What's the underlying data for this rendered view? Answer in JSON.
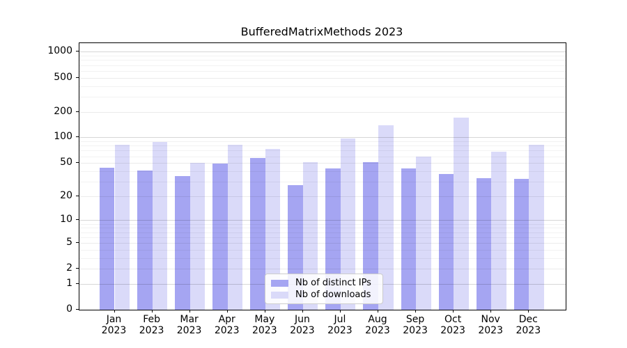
{
  "title": "BufferedMatrixMethods 2023",
  "chart_data": {
    "type": "bar",
    "title": "BufferedMatrixMethods 2023",
    "categories": [
      "Jan 2023",
      "Feb 2023",
      "Mar 2023",
      "Apr 2023",
      "May 2023",
      "Jun 2023",
      "Jul 2023",
      "Aug 2023",
      "Sep 2023",
      "Oct 2023",
      "Nov 2023",
      "Dec 2023"
    ],
    "series": [
      {
        "name": "Nb of distinct IPs",
        "color": "#a5a5f2",
        "values": [
          44,
          41,
          35,
          49,
          57,
          27,
          43,
          51,
          43,
          37,
          33,
          32
        ]
      },
      {
        "name": "Nb of downloads",
        "color": "#dadaf9",
        "values": [
          82,
          89,
          50,
          82,
          73,
          51,
          98,
          140,
          59,
          170,
          68,
          82
        ]
      }
    ],
    "xlabel": "",
    "ylabel": "",
    "y_scale": "log10(1+value)",
    "y_ticks": [
      0,
      1,
      2,
      5,
      10,
      20,
      50,
      100,
      200,
      500,
      1000
    ],
    "ylim": [
      0,
      1260
    ],
    "grid": "horizontal",
    "legend_position": "lower center inside plot"
  },
  "colors": {
    "series_1": "#a5a5f2",
    "series_2": "#dadaf9",
    "axis": "#000000",
    "grid_major": "rgba(0,0,0,0.16)",
    "grid_minor": "rgba(0,0,0,0.05)"
  }
}
